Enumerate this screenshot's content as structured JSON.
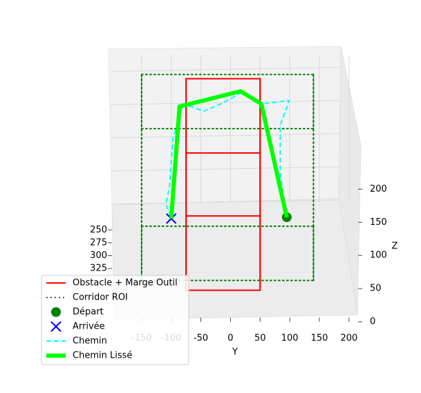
{
  "chart_data": {
    "type": "line3d",
    "xlim": [
      200,
      420
    ],
    "ylim": [
      -200,
      220
    ],
    "zlim": [
      0,
      240
    ],
    "xticks": [
      250,
      275,
      300,
      325
    ],
    "yticks": [
      -150,
      -100,
      -50,
      0,
      50,
      100,
      150,
      200
    ],
    "zticks": [
      0,
      50,
      100,
      150,
      200
    ],
    "ylabel": "Y",
    "zlabel": "Z",
    "grid": true,
    "legend": "lower left",
    "series": [
      {
        "name": "Obstacle + Marge Outil",
        "color": "#ff0000",
        "style": "solid",
        "linewidth": 2,
        "box": {
          "x": [
            223,
            367
          ],
          "y": [
            -75,
            50
          ],
          "z": [
            0,
            207
          ]
        }
      },
      {
        "name": "Corridor ROI",
        "color": "#008000",
        "style": "dotted",
        "linewidth": 2,
        "box": {
          "x": [
            243,
            348
          ],
          "y": [
            -150,
            140
          ],
          "z": [
            0,
            229
          ]
        }
      },
      {
        "name": "Départ",
        "color": "#008000",
        "marker": "o",
        "x": [
          300
        ],
        "y": [
          95
        ],
        "z": [
          58
        ]
      },
      {
        "name": "Arrivée",
        "color": "#0000ff",
        "marker": "x",
        "x": [
          300
        ],
        "y": [
          -100
        ],
        "z": [
          56
        ]
      },
      {
        "name": "Chemin",
        "color": "#00ffff",
        "style": "dashed",
        "linewidth": 2,
        "x": [
          300,
          300,
          300,
          300,
          300,
          300,
          300,
          300,
          300,
          300,
          300,
          300,
          300
        ],
        "y": [
          92,
          84,
          84,
          99,
          54,
          19,
          -16,
          -45,
          -80,
          -97,
          -103,
          -109,
          -100
        ],
        "z": [
          72,
          124,
          197,
          234,
          229,
          246,
          229,
          218,
          229,
          177,
          104,
          78,
          56
        ]
      },
      {
        "name": "Chemin Lissé",
        "color": "#00ff00",
        "style": "solid",
        "linewidth": 6,
        "x": [
          300,
          300,
          300,
          300,
          300
        ],
        "y": [
          95,
          52,
          17,
          -86,
          -100
        ],
        "z": [
          58,
          229,
          248,
          225,
          56
        ]
      }
    ]
  }
}
